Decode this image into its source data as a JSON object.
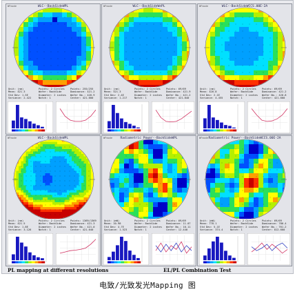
{
  "colors": {
    "scale": [
      "#0000c8",
      "#0050ff",
      "#00a0ff",
      "#00e0ff",
      "#2ae05a",
      "#b4f000",
      "#ffff00",
      "#ffa000",
      "#ff3000",
      "#c80000"
    ],
    "histogram_bar": "#1818c0",
    "profile_line_1": "#d03060",
    "profile_line_2": "#3040c0"
  },
  "panels": [
    {
      "title": "WLC--BackSideWPL",
      "corner": "WFmode",
      "stats_col1": [
        "Unit: (nm)",
        "Mean: 421.3",
        "Std Dev: 1.5E",
        "Variance: 2.422"
      ],
      "stats_col2": [
        "Points: 2 Circles",
        "Wafer: BackSide",
        "Diameter: 2 inches",
        "Notch: 1"
      ],
      "stats_col3": [
        "Points: 255/255",
        "Dominance: 421.2",
        "Wafer No.: 420.9",
        "Center: 421.600"
      ],
      "hist": [
        10,
        30,
        14,
        12,
        9,
        6,
        4,
        2
      ],
      "profile": [
        [
          0.8,
          0.5,
          0.35,
          0.3,
          0.3,
          0.35,
          0.5,
          0.75
        ]
      ]
    },
    {
      "title": "WLC--BackSideWePL",
      "corner": "WFmode",
      "stats_col1": [
        "Unit: (nm)",
        "Mean: 521.3",
        "Std Dev: 2.4E",
        "Variance: 1.217"
      ],
      "stats_col2": [
        "Points: 2 Circles",
        "Wafer: BackSide",
        "Diameter: 2 inches",
        "Notch: 1"
      ],
      "stats_col3": [
        "Points: 69/69",
        "Dominance: 421.9",
        "Wafer No.: 421.2",
        "Center: 421.840"
      ],
      "hist": [
        8,
        26,
        17,
        11,
        7,
        5,
        3,
        1
      ],
      "profile": [
        [
          0.75,
          0.45,
          0.3,
          0.28,
          0.3,
          0.4,
          0.55,
          0.7
        ]
      ]
    },
    {
      "title": "WLC--BackSideWCCS.00E-2A",
      "corner": "WFmode",
      "stats_col1": [
        "Unit: (nm)",
        "Mean: 420.8",
        "Std Dev: 2.1E",
        "Variance: 4.455"
      ],
      "stats_col2": [
        "Points: 2 Circles",
        "Wafer: BackSide",
        "Diameter: 2 inches",
        "Notch: 1"
      ],
      "stats_col3": [
        "Points: 69/69",
        "Dominance: 421.2",
        "Wafer No.: 420.8",
        "Center: 421.600"
      ],
      "hist": [
        12,
        28,
        13,
        10,
        7,
        4,
        3,
        1
      ],
      "profile": [
        [
          0.8,
          0.55,
          0.35,
          0.3,
          0.32,
          0.4,
          0.55,
          0.8
        ]
      ]
    },
    {
      "title": "WLC--BackSideWPL",
      "corner": "WFmode",
      "stats_col1": [
        "Unit: (nm)",
        "Mean: 421.5",
        "Std Dev: 1.8E",
        "Variance: 3.126"
      ],
      "stats_col2": [
        "Points: 2 Circles",
        "Wafer: BackSide",
        "Diameter: 2 inches",
        "Notch: 1"
      ],
      "stats_col3": [
        "Points: 1369/1369",
        "Dominance: 421.3",
        "Wafer No.: 421.0",
        "Center: 421.640"
      ],
      "hist": [
        6,
        24,
        18,
        14,
        8,
        5,
        3,
        2
      ],
      "profile": [
        [
          0.3,
          0.35,
          0.4,
          0.42,
          0.45,
          0.5,
          0.65,
          0.85
        ]
      ]
    },
    {
      "title": "Radiometric Power--BackSideWPL",
      "corner": "WFmode",
      "stats_col1": [
        "Unit: (mW)",
        "Mean: 10.98",
        "Std Dev: 4.7E",
        "Variance: 1.523"
      ],
      "stats_col2": [
        "Points: 2 Circles",
        "Wafer: BackSide",
        "Diameter: 2 inches",
        "Notch: 1"
      ],
      "stats_col3": [
        "Points: 69/69",
        "Dominance: 11.07",
        "Wafer No.: 10.11",
        "Center: 12.440"
      ],
      "hist": [
        3,
        8,
        14,
        22,
        18,
        9,
        5,
        2
      ],
      "profile": [
        [
          0.4,
          0.7,
          0.35,
          0.6,
          0.45,
          0.75,
          0.3,
          0.55
        ],
        [
          0.6,
          0.35,
          0.65,
          0.4,
          0.7,
          0.35,
          0.6,
          0.4
        ]
      ]
    },
    {
      "title": "Radiometric Power--BackSideWCCS.00E-2A",
      "corner": "WFmode",
      "stats_col1": [
        "Unit: (mW)",
        "Mean: 778.1",
        "Std Dev: 5.1E",
        "Variance: 374.4"
      ],
      "stats_col2": [
        "Points: 2 Circles",
        "Wafer: BackSide",
        "Diameter: 2 inches",
        "Notch: 1"
      ],
      "stats_col3": [
        "Points: 69/69",
        "Dominance: 780.4",
        "Wafer No.: 761.2",
        "Center: 812.600"
      ],
      "hist": [
        4,
        10,
        16,
        20,
        15,
        8,
        4,
        2
      ],
      "profile": [
        [
          0.35,
          0.5,
          0.7,
          0.45,
          0.65,
          0.5,
          0.3,
          0.45
        ],
        [
          0.55,
          0.4,
          0.5,
          0.65,
          0.4,
          0.6,
          0.7,
          0.5
        ]
      ]
    }
  ],
  "captions": {
    "left": "PL mapping at different resolutions",
    "right": "EL/PL Combination Test"
  },
  "page_title": "电致/光致发光Mapping 图"
}
